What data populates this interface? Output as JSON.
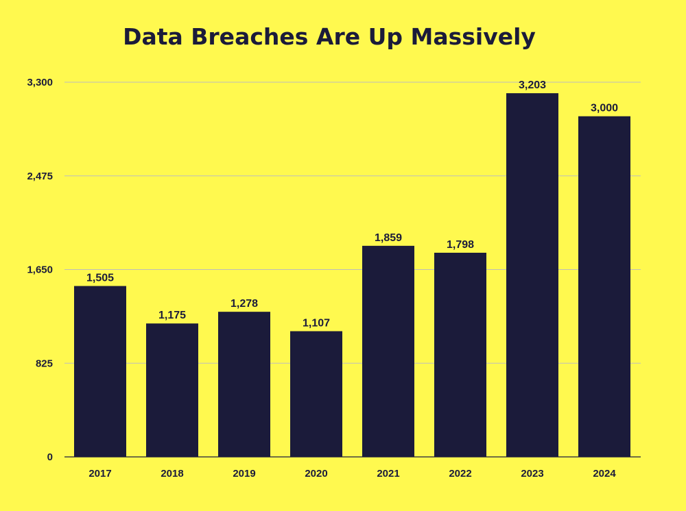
{
  "chart_data": {
    "type": "bar",
    "title": "Data Breaches Are Up Massively",
    "categories": [
      "2017",
      "2018",
      "2019",
      "2020",
      "2021",
      "2022",
      "2023",
      "2024"
    ],
    "values": [
      1505,
      1175,
      1278,
      1107,
      1859,
      1798,
      3203,
      3000
    ],
    "data_labels": [
      "1,505",
      "1,175",
      "1,278",
      "1,107",
      "1,859",
      "1,798",
      "3,203",
      "3,000"
    ],
    "yticks": [
      0,
      825,
      1650,
      2475,
      3300
    ],
    "ytick_labels": [
      "0",
      "825",
      "1,650",
      "2,475",
      "3,300"
    ],
    "ylim": [
      0,
      3300
    ],
    "xlabel": "",
    "ylabel": "",
    "grid": true,
    "colors": {
      "background": "#fff94f",
      "bar": "#1b1b3a",
      "grid": "#bdbdbd"
    }
  }
}
